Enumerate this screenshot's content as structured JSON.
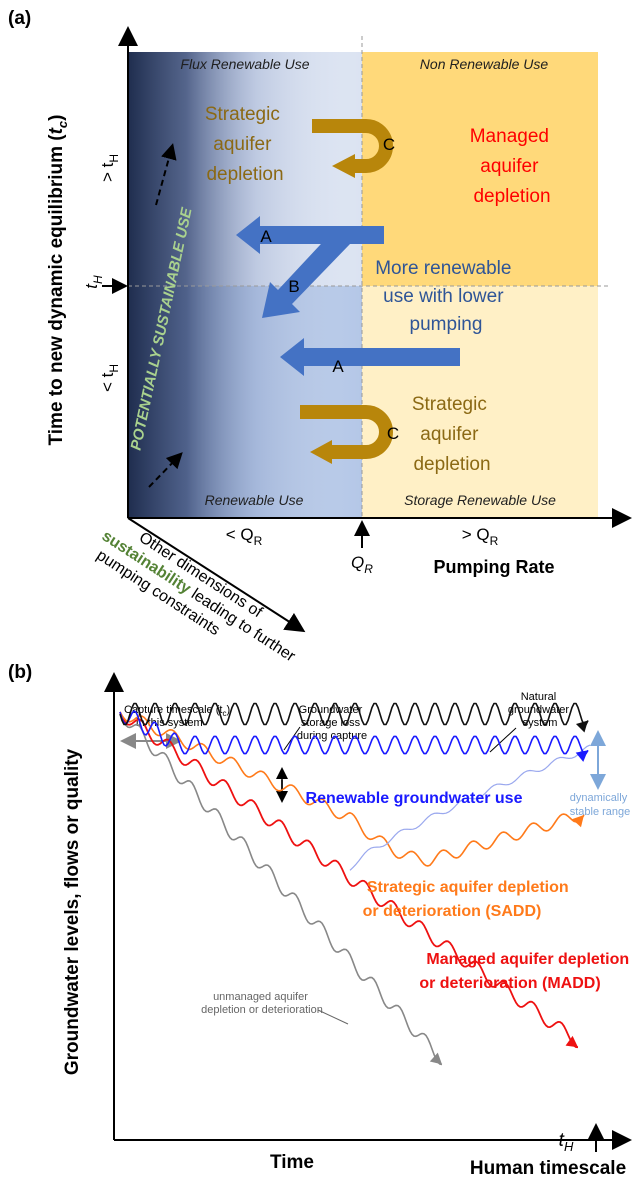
{
  "panel_a": {
    "panel_label": "(a)",
    "y_axis_title": "Time to new dynamic equilibrium (",
    "y_axis_title_sym": "t",
    "y_axis_title_sub": "c",
    "y_axis_title_end": ")",
    "y_tick_high": "> t",
    "y_tick_high_sub": "H",
    "y_tick_mid": "t",
    "y_tick_mid_sub": "H",
    "y_tick_low": "< t",
    "y_tick_low_sub": "H",
    "x_tick_low": "< Q",
    "x_tick_low_sub": "R",
    "x_tick_mid": "Q",
    "x_tick_mid_sub": "R",
    "x_tick_high": "> Q",
    "x_tick_high_sub": "R",
    "x_axis_title": "Pumping Rate",
    "quadrants": {
      "top_left": "Flux Renewable Use",
      "top_right": "Non Renewable Use",
      "bottom_left": "Renewable Use",
      "bottom_right": "Storage Renewable Use"
    },
    "diagonal_label": "POTENTIALLY SUSTAINABLE USE",
    "strategic_top": [
      "Strategic",
      "aquifer",
      "depletion"
    ],
    "strategic_bottom": [
      "Strategic",
      "aquifer",
      "depletion"
    ],
    "managed": [
      "Managed",
      "aquifer",
      "depletion"
    ],
    "more_renewable": [
      "More renewable",
      "use with lower",
      "pumping"
    ],
    "arrow_labels": {
      "a_top": "A",
      "b": "B",
      "a_bottom": "A",
      "c_top": "C",
      "c_bottom": "C"
    },
    "other_dims": {
      "line1": "Other dimensions of",
      "line2_highlight": "sustainability",
      "line2_rest": " leading to further",
      "line3": "pumping constraints"
    },
    "colors": {
      "flux_bg": "#dbe3f2",
      "renewable_bg": "#b4c7e7",
      "gradient_dark": "#1f2d4e",
      "nonrenewable_bg": "#ffd97a",
      "storage_bg": "#fff0c6",
      "blue_arrow": "#4472c4",
      "gold_arrow": "#b8860b",
      "red_text": "#ff0000",
      "green_text": "#548235",
      "blue_text": "#2f5597",
      "brown_text": "#8b6914"
    }
  },
  "panel_b": {
    "panel_label": "(b)",
    "y_axis_title": "Groundwater levels, flows or quality",
    "x_axis_title": "Time",
    "capture_label": [
      "Capture timescale (t",
      "c",
      ")",
      "in this system"
    ],
    "storage_loss": [
      "Groundwater",
      "storage loss",
      "during capture"
    ],
    "natural": [
      "Natural",
      "groundwater",
      "system"
    ],
    "renewable": "Renewable groundwater use",
    "stable": [
      "dynamically",
      "stable range"
    ],
    "sadd": [
      "Strategic aquifer depletion",
      "or deterioration (SADD)"
    ],
    "madd": [
      "Managed aquifer depletion",
      "or deterioration (MADD)"
    ],
    "unmanaged": [
      "unmanaged aquifer",
      "depletion or deterioration"
    ],
    "t_h": "t",
    "t_h_sub": "H",
    "human_timescale": "Human timescale",
    "colors": {
      "natural": "#111111",
      "renewable": "#1a1aff",
      "renewable_recovery": "#9aa8ee",
      "sadd": "#ff7a1a",
      "madd": "#ee1111",
      "unmanaged": "#888888",
      "stable": "#7da7d9"
    }
  }
}
